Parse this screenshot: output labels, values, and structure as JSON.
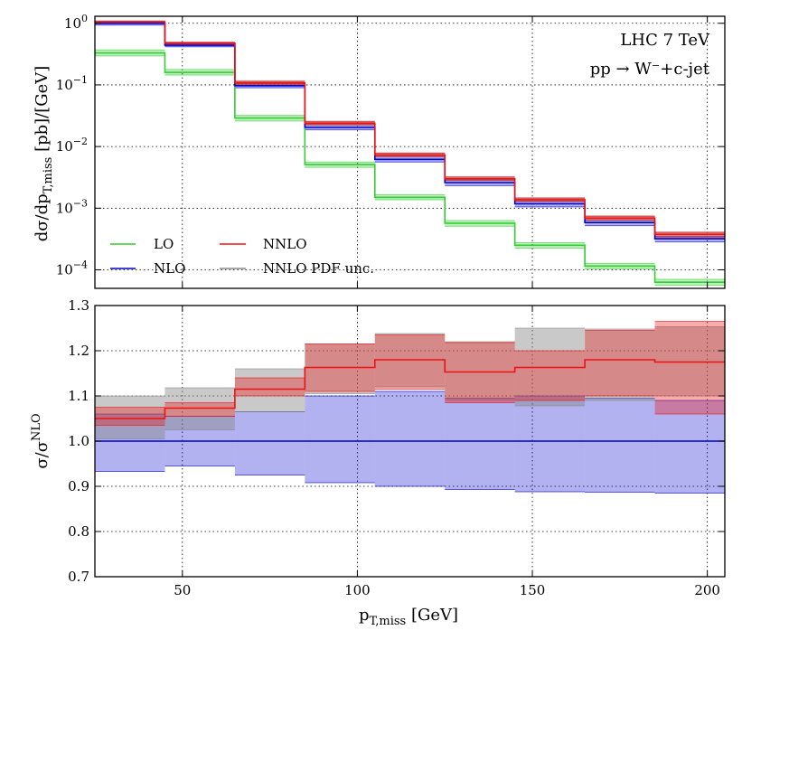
{
  "chart_data": [
    {
      "type": "line",
      "panel": "top",
      "step": "histogram",
      "yscale": "log",
      "bin_edges": [
        25,
        45,
        65,
        85,
        105,
        125,
        145,
        165,
        185,
        205
      ],
      "xlim": [
        25,
        205
      ],
      "ylim": [
        5e-05,
        1.3
      ],
      "xticks": [
        50,
        100,
        150,
        200
      ],
      "yticks": [
        {
          "value": 1,
          "mant": "10",
          "exp": "0"
        },
        {
          "value": 0.1,
          "mant": "10",
          "exp": "−1"
        },
        {
          "value": 0.01,
          "mant": "10",
          "exp": "−2"
        },
        {
          "value": 0.001,
          "mant": "10",
          "exp": "−3"
        },
        {
          "value": 0.0001,
          "mant": "10",
          "exp": "−4"
        }
      ],
      "ylabel": {
        "text": "dσ/dp",
        "sub": "T,miss",
        "tail": " [pb]/[GeV]"
      },
      "annotations": [
        "LHC 7 TeV",
        "pp → W⁻+c-jet"
      ],
      "series": [
        {
          "name": "LO",
          "color": "#33cc33",
          "values": [
            0.33,
            0.16,
            0.029,
            0.0051,
            0.0015,
            0.00057,
            0.00025,
            0.000115,
            6.3e-05
          ],
          "band_low": [
            0.295,
            0.145,
            0.026,
            0.0046,
            0.00137,
            0.00051,
            0.000225,
            0.000104,
            5.6e-05
          ],
          "band_high": [
            0.37,
            0.178,
            0.032,
            0.0056,
            0.00165,
            0.00063,
            0.000275,
            0.000127,
            7e-05
          ]
        },
        {
          "name": "NLO",
          "color": "#0000cc",
          "values": [
            1.0,
            0.44,
            0.097,
            0.0205,
            0.0062,
            0.0026,
            0.00118,
            0.000585,
            0.00032
          ],
          "band_low": [
            0.935,
            0.415,
            0.09,
            0.0187,
            0.0056,
            0.00232,
            0.00105,
            0.00052,
            0.000284
          ],
          "band_high": [
            1.06,
            0.465,
            0.103,
            0.0226,
            0.0069,
            0.00285,
            0.0013,
            0.00064,
            0.00035
          ]
        },
        {
          "name": "NNLO",
          "color": "#ee1111",
          "values": [
            1.05,
            0.475,
            0.108,
            0.0239,
            0.0073,
            0.003,
            0.00137,
            0.00069,
            0.000376
          ],
          "band_low": [
            1.02,
            0.46,
            0.103,
            0.0227,
            0.0069,
            0.00285,
            0.0013,
            0.00064,
            0.00034
          ],
          "band_high": [
            1.08,
            0.49,
            0.114,
            0.0253,
            0.0078,
            0.0032,
            0.00146,
            0.00074,
            0.000405
          ]
        },
        {
          "name": "NNLO PDF unc.",
          "color": "#888888",
          "values": [
            1.05,
            0.475,
            0.108,
            0.0239,
            0.0073,
            0.003,
            0.00137,
            0.00069,
            0.000376
          ],
          "band_low": [
            1.005,
            0.452,
            0.101,
            0.0222,
            0.0068,
            0.00279,
            0.00127,
            0.00063,
            0.000343
          ],
          "band_high": [
            1.1,
            0.495,
            0.117,
            0.0258,
            0.0079,
            0.00325,
            0.00148,
            0.00075,
            0.00041
          ]
        }
      ],
      "legend": {
        "placement": "lower-left",
        "entries": [
          "LO",
          "NNLO",
          "NLO",
          "NNLO PDF unc."
        ]
      }
    },
    {
      "type": "line",
      "panel": "bottom",
      "step": "histogram",
      "bin_edges": [
        25,
        45,
        65,
        85,
        105,
        125,
        145,
        165,
        185,
        205
      ],
      "xlim": [
        25,
        205
      ],
      "ylim": [
        0.7,
        1.3
      ],
      "xticks": [
        50,
        100,
        150,
        200
      ],
      "yticks": [
        "0.7",
        "0.8",
        "0.9",
        "1.0",
        "1.1",
        "1.2",
        "1.3"
      ],
      "xlabel": {
        "text": "p",
        "sub": "T,miss",
        "tail": " [GeV]"
      },
      "ylabel": {
        "text": "σ/σ",
        "sup": "NLO"
      },
      "series": [
        {
          "name": "NLO",
          "color": "#0000cc",
          "values": [
            1.0,
            1.0,
            1.0,
            1.0,
            1.0,
            1.0,
            1.0,
            1.0,
            1.0
          ],
          "band_low": [
            0.933,
            0.945,
            0.925,
            0.908,
            0.9,
            0.893,
            0.888,
            0.887,
            0.885
          ],
          "band_high": [
            1.06,
            1.055,
            1.065,
            1.1,
            1.11,
            1.095,
            1.1,
            1.095,
            1.09
          ]
        },
        {
          "name": "NNLO",
          "color": "#ee1111",
          "values": [
            1.05,
            1.073,
            1.115,
            1.163,
            1.18,
            1.153,
            1.163,
            1.18,
            1.175
          ],
          "band_low": [
            1.035,
            1.055,
            1.1,
            1.11,
            1.115,
            1.085,
            1.09,
            1.1,
            1.06
          ],
          "band_high": [
            1.075,
            1.085,
            1.14,
            1.215,
            1.235,
            1.218,
            1.2,
            1.245,
            1.265
          ]
        },
        {
          "name": "NNLO PDF unc.",
          "color": "#888888",
          "values": [
            1.05,
            1.073,
            1.115,
            1.163,
            1.18,
            1.153,
            1.163,
            1.18,
            1.175
          ],
          "band_low": [
            1.005,
            1.025,
            1.065,
            1.105,
            1.12,
            1.09,
            1.078,
            1.09,
            1.1
          ],
          "band_high": [
            1.1,
            1.118,
            1.16,
            1.215,
            1.238,
            1.22,
            1.25,
            1.248,
            1.253
          ]
        }
      ]
    }
  ]
}
